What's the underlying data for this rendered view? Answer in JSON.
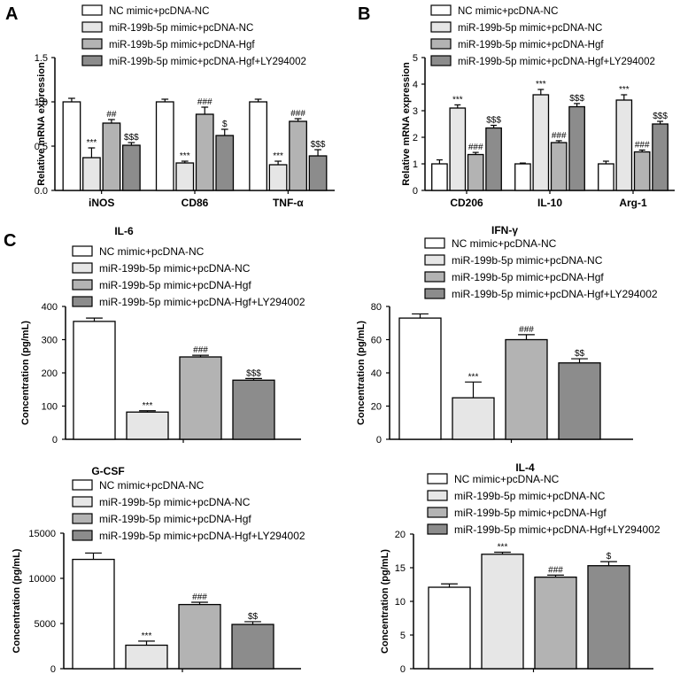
{
  "panel_letters": [
    "A",
    "B",
    "C"
  ],
  "legend_labels": [
    "NC mimic+pcDNA-NC",
    "miR-199b-5p mimic+pcDNA-NC",
    "miR-199b-5p mimic+pcDNA-Hgf",
    "miR-199b-5p mimic+pcDNA-Hgf+LY294002"
  ],
  "series_colors": [
    "#ffffff",
    "#e6e6e6",
    "#b3b3b3",
    "#8c8c8c"
  ],
  "chart_data": [
    {
      "panel": "A",
      "type": "bar",
      "title": "",
      "xlabel": "",
      "ylabel": "Relative mRNA expression",
      "ylim": [
        0,
        1.5
      ],
      "yticks": [
        "0.0",
        "0.5",
        "1.0",
        "1.5"
      ],
      "categories": [
        "iNOS",
        "CD86",
        "TNF-α"
      ],
      "series": [
        {
          "name": "NC mimic+pcDNA-NC",
          "values": [
            1.0,
            1.0,
            1.0
          ],
          "errors": [
            0.04,
            0.03,
            0.03
          ],
          "annotations": [
            "",
            "",
            ""
          ]
        },
        {
          "name": "miR-199b-5p mimic+pcDNA-NC",
          "values": [
            0.37,
            0.31,
            0.29
          ],
          "errors": [
            0.11,
            0.02,
            0.04
          ],
          "annotations": [
            "***",
            "***",
            "***"
          ]
        },
        {
          "name": "miR-199b-5p mimic+pcDNA-Hgf",
          "values": [
            0.76,
            0.86,
            0.78
          ],
          "errors": [
            0.04,
            0.08,
            0.03
          ],
          "annotations": [
            "##",
            "###",
            "###"
          ]
        },
        {
          "name": "miR-199b-5p mimic+pcDNA-Hgf+LY294002",
          "values": [
            0.51,
            0.62,
            0.39
          ],
          "errors": [
            0.03,
            0.07,
            0.07
          ],
          "annotations": [
            "$$$",
            "$",
            "$$$"
          ]
        }
      ]
    },
    {
      "panel": "B",
      "type": "bar",
      "title": "",
      "xlabel": "",
      "ylabel": "Relative mRNA expression",
      "ylim": [
        0,
        5
      ],
      "yticks": [
        "0",
        "1",
        "2",
        "3",
        "4",
        "5"
      ],
      "categories": [
        "CD206",
        "IL-10",
        "Arg-1"
      ],
      "series": [
        {
          "name": "NC mimic+pcDNA-NC",
          "values": [
            1.0,
            1.0,
            1.0
          ],
          "errors": [
            0.15,
            0.03,
            0.1
          ],
          "annotations": [
            "",
            "",
            ""
          ]
        },
        {
          "name": "miR-199b-5p mimic+pcDNA-NC",
          "values": [
            3.1,
            3.6,
            3.4
          ],
          "errors": [
            0.12,
            0.2,
            0.2
          ],
          "annotations": [
            "***",
            "***",
            "***"
          ]
        },
        {
          "name": "miR-199b-5p mimic+pcDNA-Hgf",
          "values": [
            1.35,
            1.8,
            1.45
          ],
          "errors": [
            0.08,
            0.07,
            0.07
          ],
          "annotations": [
            "###",
            "###",
            "###"
          ]
        },
        {
          "name": "miR-199b-5p mimic+pcDNA-Hgf+LY294002",
          "values": [
            2.35,
            3.15,
            2.5
          ],
          "errors": [
            0.1,
            0.12,
            0.1
          ],
          "annotations": [
            "$$$",
            "$$$",
            "$$$"
          ]
        }
      ]
    },
    {
      "panel": "C1",
      "type": "bar",
      "title": "IL-6",
      "xlabel": "",
      "ylabel": "Concentration (pg/mL)",
      "ylim": [
        0,
        400
      ],
      "yticks": [
        "0",
        "100",
        "200",
        "300",
        "400"
      ],
      "categories": [
        ""
      ],
      "series": [
        {
          "name": "NC mimic+pcDNA-NC",
          "values": [
            355
          ],
          "errors": [
            10
          ],
          "annotations": [
            ""
          ]
        },
        {
          "name": "miR-199b-5p mimic+pcDNA-NC",
          "values": [
            82
          ],
          "errors": [
            4
          ],
          "annotations": [
            "***"
          ]
        },
        {
          "name": "miR-199b-5p mimic+pcDNA-Hgf",
          "values": [
            248
          ],
          "errors": [
            5
          ],
          "annotations": [
            "###"
          ]
        },
        {
          "name": "miR-199b-5p mimic+pcDNA-Hgf+LY294002",
          "values": [
            178
          ],
          "errors": [
            5
          ],
          "annotations": [
            "$$$"
          ]
        }
      ]
    },
    {
      "panel": "C2",
      "type": "bar",
      "title": "IFN-γ",
      "xlabel": "",
      "ylabel": "Concentration (pg/mL)",
      "ylim": [
        0,
        80
      ],
      "yticks": [
        "0",
        "20",
        "40",
        "60",
        "80"
      ],
      "categories": [
        ""
      ],
      "series": [
        {
          "name": "NC mimic+pcDNA-NC",
          "values": [
            73
          ],
          "errors": [
            2.5
          ],
          "annotations": [
            ""
          ]
        },
        {
          "name": "miR-199b-5p mimic+pcDNA-NC",
          "values": [
            25
          ],
          "errors": [
            9.5
          ],
          "annotations": [
            "***"
          ]
        },
        {
          "name": "miR-199b-5p mimic+pcDNA-Hgf",
          "values": [
            60
          ],
          "errors": [
            3
          ],
          "annotations": [
            "###"
          ]
        },
        {
          "name": "miR-199b-5p mimic+pcDNA-Hgf+LY294002",
          "values": [
            46
          ],
          "errors": [
            2.5
          ],
          "annotations": [
            "$$"
          ]
        }
      ]
    },
    {
      "panel": "C3",
      "type": "bar",
      "title": "G-CSF",
      "xlabel": "",
      "ylabel": "Concentration (pg/mL)",
      "ylim": [
        0,
        15000
      ],
      "yticks": [
        "0",
        "5000",
        "10000",
        "15000"
      ],
      "categories": [
        ""
      ],
      "series": [
        {
          "name": "NC mimic+pcDNA-NC",
          "values": [
            12100
          ],
          "errors": [
            700
          ],
          "annotations": [
            ""
          ]
        },
        {
          "name": "miR-199b-5p mimic+pcDNA-NC",
          "values": [
            2600
          ],
          "errors": [
            450
          ],
          "annotations": [
            "***"
          ]
        },
        {
          "name": "miR-199b-5p mimic+pcDNA-Hgf",
          "values": [
            7100
          ],
          "errors": [
            250
          ],
          "annotations": [
            "###"
          ]
        },
        {
          "name": "miR-199b-5p mimic+pcDNA-Hgf+LY294002",
          "values": [
            4900
          ],
          "errors": [
            300
          ],
          "annotations": [
            "$$"
          ]
        }
      ]
    },
    {
      "panel": "C4",
      "type": "bar",
      "title": "IL-4",
      "xlabel": "",
      "ylabel": "Concentration (pg/mL)",
      "ylim": [
        0,
        20
      ],
      "yticks": [
        "0",
        "5",
        "10",
        "15",
        "20"
      ],
      "categories": [
        ""
      ],
      "series": [
        {
          "name": "NC mimic+pcDNA-NC",
          "values": [
            12.1
          ],
          "errors": [
            0.5
          ],
          "annotations": [
            ""
          ]
        },
        {
          "name": "miR-199b-5p mimic+pcDNA-NC",
          "values": [
            17
          ],
          "errors": [
            0.3
          ],
          "annotations": [
            "***"
          ]
        },
        {
          "name": "miR-199b-5p mimic+pcDNA-Hgf",
          "values": [
            13.6
          ],
          "errors": [
            0.3
          ],
          "annotations": [
            "###"
          ]
        },
        {
          "name": "miR-199b-5p mimic+pcDNA-Hgf+LY294002",
          "values": [
            15.3
          ],
          "errors": [
            0.6
          ],
          "annotations": [
            "$"
          ]
        }
      ]
    }
  ]
}
